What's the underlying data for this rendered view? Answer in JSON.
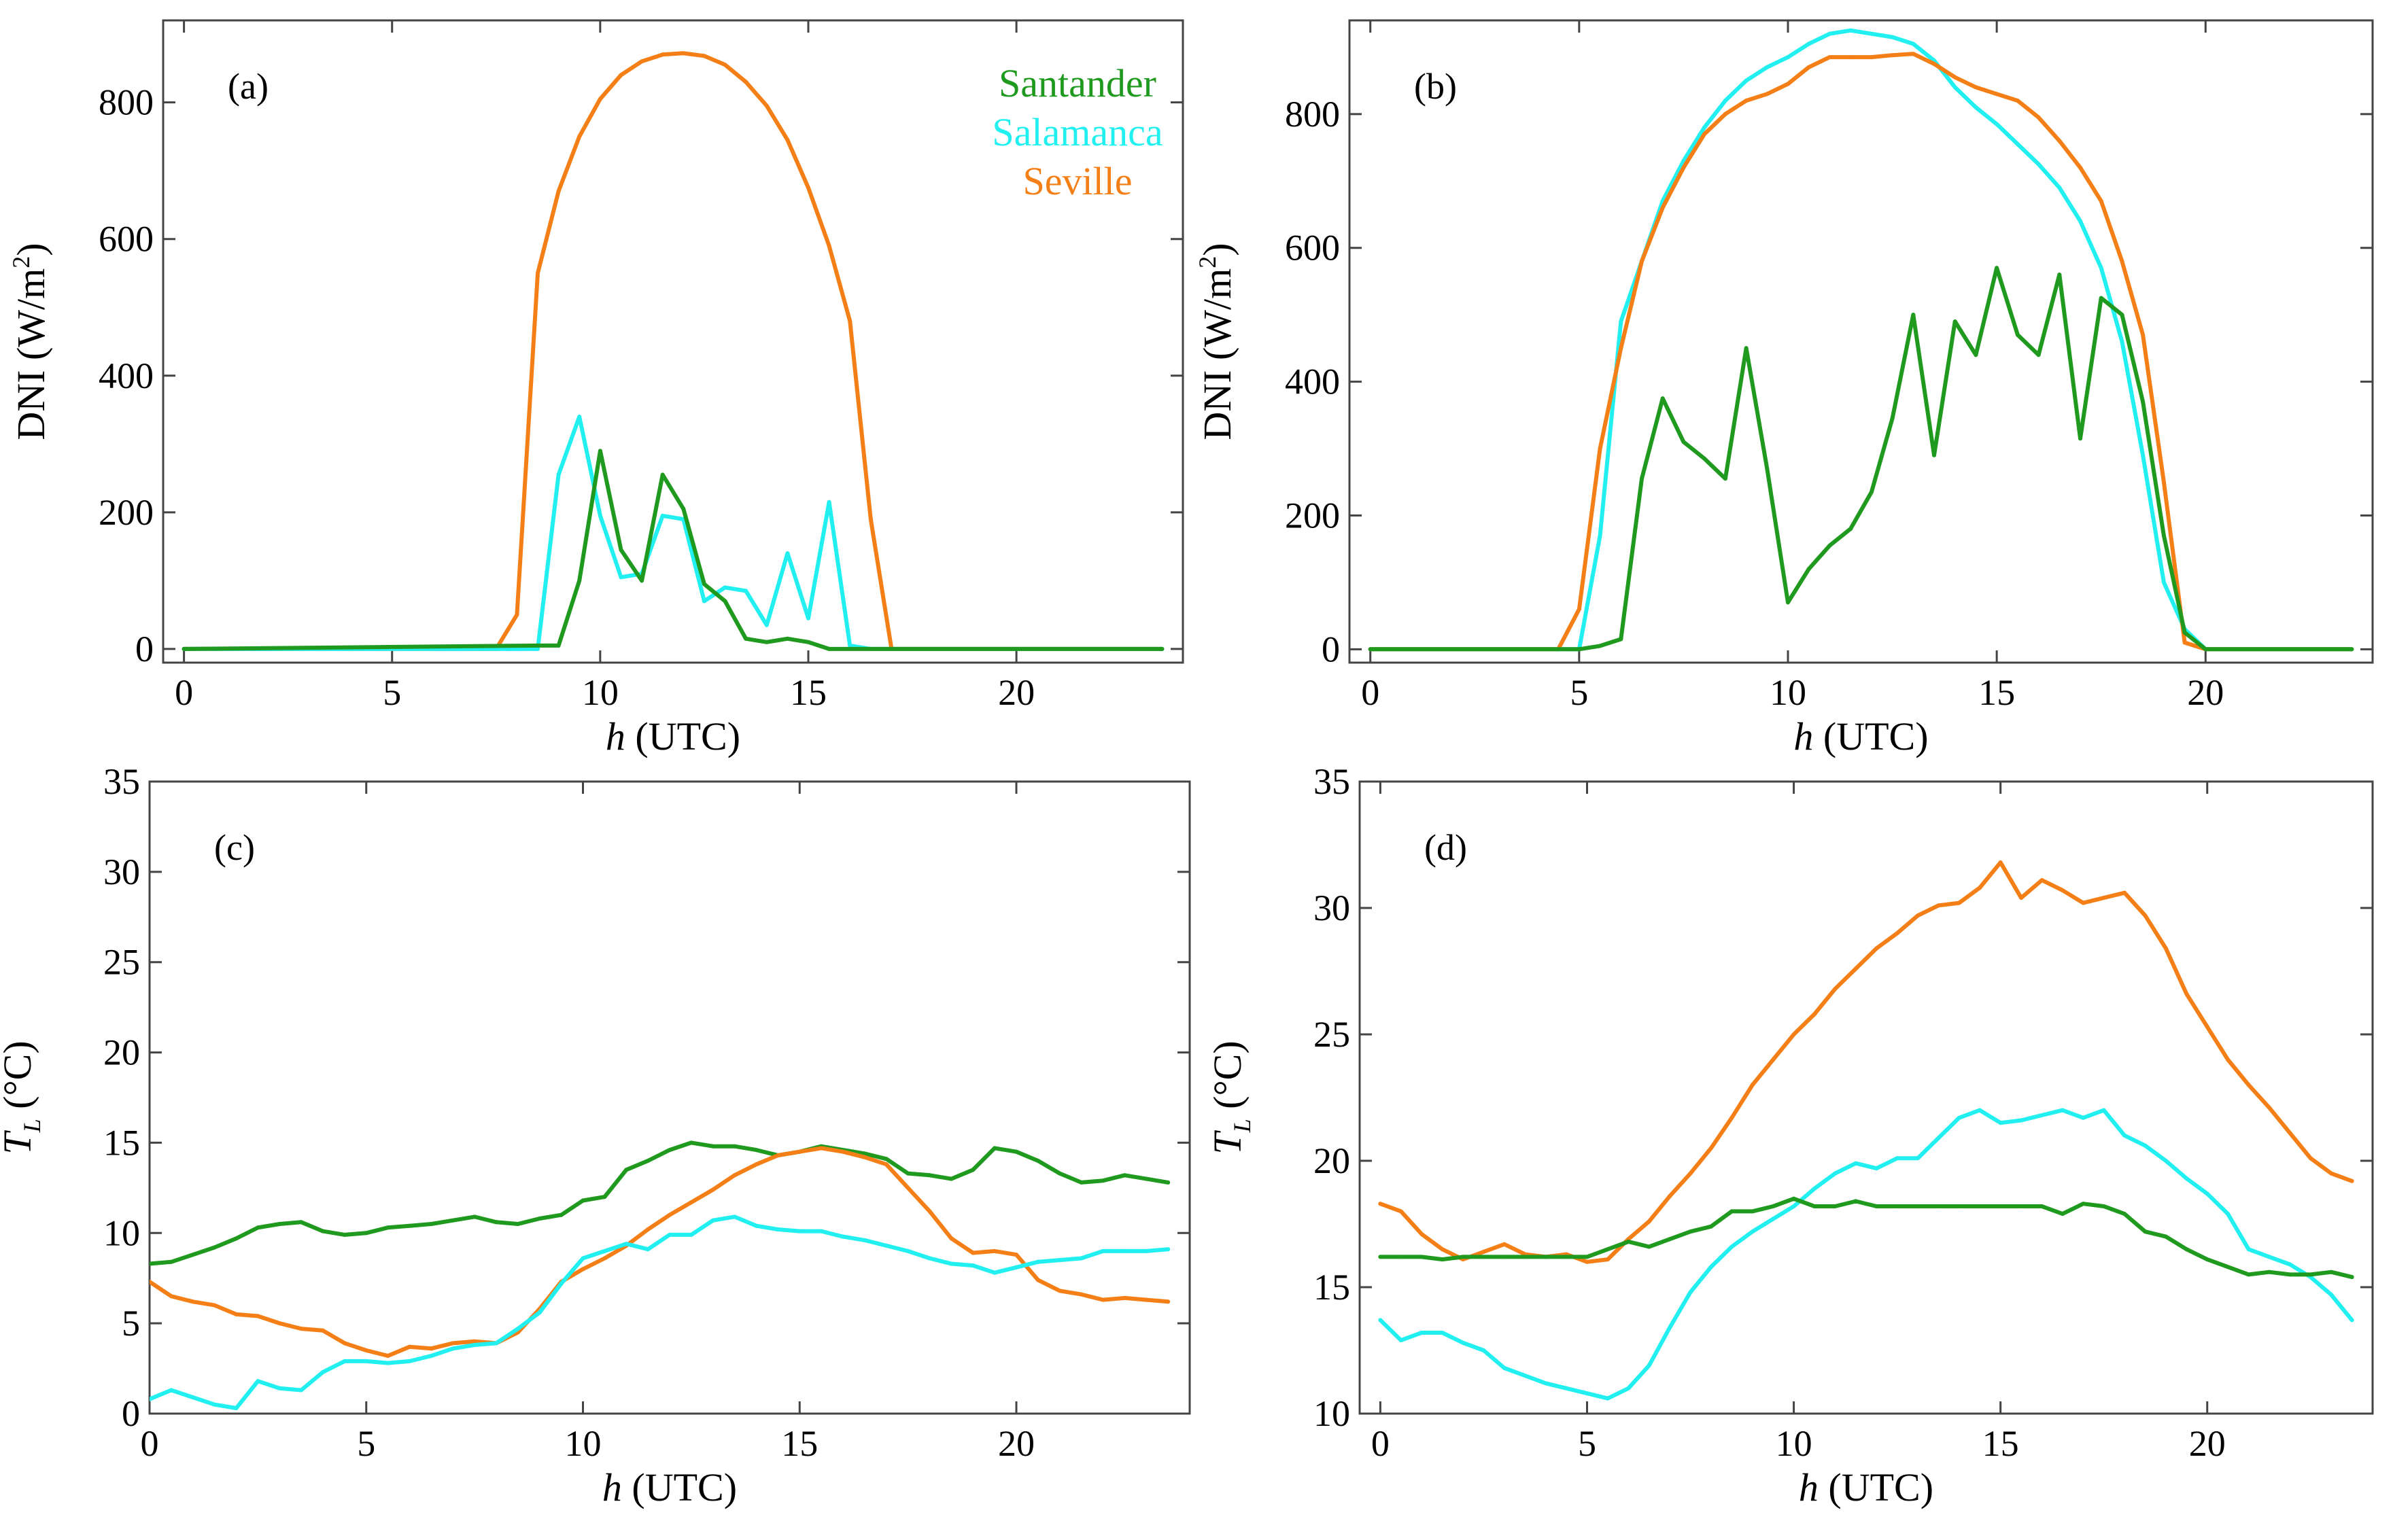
{
  "colors": {
    "Santander": "#1f9a1f",
    "Salamanca": "#22f0f0",
    "Seville": "#f57f17"
  },
  "chart_data": [
    {
      "type": "line",
      "panel_label": "(a)",
      "xlabel": "h (UTC)",
      "ylabel": "DNI (W/m²)",
      "xlim": [
        -0.5,
        24
      ],
      "ylim": [
        -20,
        920
      ],
      "xticks": [
        0,
        5,
        10,
        15,
        20
      ],
      "yticks": [
        0,
        200,
        400,
        600,
        800
      ],
      "grid": false,
      "legend": {
        "position": "top-right",
        "entries": [
          "Santander",
          "Salamanca",
          "Seville"
        ]
      },
      "series": [
        {
          "name": "Seville",
          "x": [
            0,
            7.5,
            8,
            8.5,
            9,
            9.5,
            10,
            10.5,
            11,
            11.5,
            12,
            12.5,
            13,
            13.5,
            14,
            14.5,
            15,
            15.5,
            16,
            16.5,
            17,
            23.5
          ],
          "y": [
            0,
            0,
            50,
            550,
            670,
            750,
            805,
            840,
            860,
            870,
            872,
            868,
            855,
            830,
            795,
            745,
            675,
            590,
            480,
            190,
            0,
            0
          ]
        },
        {
          "name": "Salamanca",
          "x": [
            0,
            8.5,
            9,
            9.5,
            10,
            10.5,
            11,
            11.5,
            12,
            12.5,
            13,
            13.5,
            14,
            14.5,
            15,
            15.5,
            16,
            16.5,
            23.5
          ],
          "y": [
            0,
            0,
            255,
            340,
            195,
            105,
            110,
            195,
            190,
            70,
            90,
            85,
            35,
            140,
            45,
            215,
            5,
            0,
            0
          ]
        },
        {
          "name": "Santander",
          "x": [
            0,
            8.5,
            9,
            9.5,
            10,
            10.5,
            11,
            11.5,
            12,
            12.5,
            13,
            13.5,
            14,
            14.5,
            15,
            15.5,
            23.5
          ],
          "y": [
            0,
            5,
            5,
            100,
            290,
            145,
            100,
            255,
            205,
            95,
            70,
            15,
            10,
            15,
            10,
            0,
            0
          ]
        }
      ]
    },
    {
      "type": "line",
      "panel_label": "(b)",
      "xlabel": "h (UTC)",
      "ylabel": "DNI (W/m²)",
      "xlim": [
        -0.5,
        24
      ],
      "ylim": [
        -20,
        940
      ],
      "xticks": [
        0,
        5,
        10,
        15,
        20
      ],
      "yticks": [
        0,
        200,
        400,
        600,
        800
      ],
      "grid": false,
      "series": [
        {
          "name": "Salamanca",
          "x": [
            0,
            5,
            5.5,
            6,
            6.5,
            7,
            7.5,
            8,
            8.5,
            9,
            9.5,
            10,
            10.5,
            11,
            11.5,
            12,
            12.5,
            13,
            13.5,
            14,
            14.5,
            15,
            15.5,
            16,
            16.5,
            17,
            17.5,
            18,
            18.5,
            19,
            19.5,
            20,
            23.5
          ],
          "y": [
            0,
            0,
            170,
            490,
            580,
            670,
            730,
            780,
            820,
            850,
            870,
            885,
            905,
            920,
            925,
            920,
            915,
            905,
            880,
            840,
            810,
            785,
            755,
            725,
            690,
            640,
            570,
            460,
            290,
            100,
            30,
            0,
            0
          ]
        },
        {
          "name": "Seville",
          "x": [
            0,
            4.5,
            5,
            5.5,
            6,
            6.5,
            7,
            7.5,
            8,
            8.5,
            9,
            9.5,
            10,
            10.5,
            11,
            11.5,
            12,
            12.5,
            13,
            13.5,
            14,
            14.5,
            15,
            15.5,
            16,
            16.5,
            17,
            17.5,
            18,
            18.5,
            19,
            19.5,
            20,
            23.5
          ],
          "y": [
            0,
            0,
            60,
            300,
            450,
            580,
            660,
            720,
            770,
            800,
            820,
            830,
            845,
            870,
            885,
            885,
            885,
            888,
            890,
            875,
            855,
            840,
            830,
            820,
            795,
            760,
            720,
            670,
            580,
            470,
            250,
            10,
            0,
            0
          ]
        },
        {
          "name": "Santander",
          "x": [
            0,
            5,
            5.5,
            6,
            6.5,
            7,
            7.5,
            8,
            8.5,
            9,
            9.5,
            10,
            10.5,
            11,
            11.5,
            12,
            12.5,
            13,
            13.5,
            14,
            14.5,
            15,
            15.5,
            16,
            16.5,
            17,
            17.5,
            18,
            18.5,
            19,
            19.5,
            20,
            23.5
          ],
          "y": [
            0,
            0,
            5,
            15,
            255,
            375,
            310,
            285,
            255,
            450,
            270,
            70,
            120,
            155,
            180,
            235,
            345,
            500,
            290,
            490,
            440,
            570,
            470,
            440,
            560,
            315,
            525,
            500,
            370,
            170,
            25,
            0,
            0
          ]
        }
      ]
    },
    {
      "type": "line",
      "panel_label": "(c)",
      "xlabel": "h (UTC)",
      "ylabel": "T_L (°C)",
      "xlim": [
        0,
        24
      ],
      "ylim": [
        0,
        35
      ],
      "xticks": [
        0,
        5,
        10,
        15,
        20
      ],
      "yticks": [
        0,
        5,
        10,
        15,
        20,
        25,
        30,
        35
      ],
      "grid": false,
      "series": [
        {
          "name": "Santander",
          "x": [
            0,
            0.5,
            1,
            1.5,
            2,
            2.5,
            3,
            3.5,
            4,
            4.5,
            5,
            5.5,
            6,
            6.5,
            7,
            7.5,
            8,
            8.5,
            9,
            9.5,
            10,
            10.5,
            11,
            11.5,
            12,
            12.5,
            13,
            13.5,
            14,
            14.5,
            15,
            15.5,
            16,
            16.5,
            17,
            17.5,
            18,
            18.5,
            19,
            19.5,
            20,
            20.5,
            21,
            21.5,
            22,
            22.5,
            23,
            23.5
          ],
          "y": [
            8.3,
            8.4,
            8.8,
            9.2,
            9.7,
            10.3,
            10.5,
            10.6,
            10.1,
            9.9,
            10.0,
            10.3,
            10.4,
            10.5,
            10.7,
            10.9,
            10.6,
            10.5,
            10.8,
            11.0,
            11.8,
            12.0,
            13.5,
            14.0,
            14.6,
            15.0,
            14.8,
            14.8,
            14.6,
            14.3,
            14.5,
            14.8,
            14.6,
            14.4,
            14.1,
            13.3,
            13.2,
            13.0,
            13.5,
            14.7,
            14.5,
            14.0,
            13.3,
            12.8,
            12.9,
            13.2,
            13.0,
            12.8
          ]
        },
        {
          "name": "Seville",
          "x": [
            0,
            0.5,
            1,
            1.5,
            2,
            2.5,
            3,
            3.5,
            4,
            4.5,
            5,
            5.5,
            6,
            6.5,
            7,
            7.5,
            8,
            8.5,
            9,
            9.5,
            10,
            10.5,
            11,
            11.5,
            12,
            12.5,
            13,
            13.5,
            14,
            14.5,
            15,
            15.5,
            16,
            16.5,
            17,
            17.5,
            18,
            18.5,
            19,
            19.5,
            20,
            20.5,
            21,
            21.5,
            22,
            22.5,
            23,
            23.5
          ],
          "y": [
            7.3,
            6.5,
            6.2,
            6.0,
            5.5,
            5.4,
            5.0,
            4.7,
            4.6,
            3.9,
            3.5,
            3.2,
            3.7,
            3.6,
            3.9,
            4.0,
            3.9,
            4.5,
            5.8,
            7.3,
            8.0,
            8.6,
            9.3,
            10.2,
            11.0,
            11.7,
            12.4,
            13.2,
            13.8,
            14.3,
            14.5,
            14.7,
            14.5,
            14.2,
            13.8,
            12.5,
            11.2,
            9.7,
            8.9,
            9.0,
            8.8,
            7.4,
            6.8,
            6.6,
            6.3,
            6.4,
            6.3,
            6.2
          ]
        },
        {
          "name": "Salamanca",
          "x": [
            0,
            0.5,
            1,
            1.5,
            2,
            2.5,
            3,
            3.5,
            4,
            4.5,
            5,
            5.5,
            6,
            6.5,
            7,
            7.5,
            8,
            8.5,
            9,
            9.5,
            10,
            10.5,
            11,
            11.5,
            12,
            12.5,
            13,
            13.5,
            14,
            14.5,
            15,
            15.5,
            16,
            16.5,
            17,
            17.5,
            18,
            18.5,
            19,
            19.5,
            20,
            20.5,
            21,
            21.5,
            22,
            22.5,
            23,
            23.5
          ],
          "y": [
            0.8,
            1.3,
            0.9,
            0.5,
            0.3,
            1.8,
            1.4,
            1.3,
            2.3,
            2.9,
            2.9,
            2.8,
            2.9,
            3.2,
            3.6,
            3.8,
            3.9,
            4.7,
            5.6,
            7.2,
            8.6,
            9.0,
            9.4,
            9.1,
            9.9,
            9.9,
            10.7,
            10.9,
            10.4,
            10.2,
            10.1,
            10.1,
            9.8,
            9.6,
            9.3,
            9.0,
            8.6,
            8.3,
            8.2,
            7.8,
            8.1,
            8.4,
            8.5,
            8.6,
            9.0,
            9.0,
            9.0,
            9.1
          ]
        }
      ]
    },
    {
      "type": "line",
      "panel_label": "(d)",
      "xlabel": "h (UTC)",
      "ylabel": "T_L (°C)",
      "xlim": [
        -0.5,
        24
      ],
      "ylim": [
        10,
        35
      ],
      "xticks": [
        0,
        5,
        10,
        15,
        20
      ],
      "yticks": [
        10,
        15,
        20,
        25,
        30,
        35
      ],
      "grid": false,
      "series": [
        {
          "name": "Seville",
          "x": [
            0,
            0.5,
            1,
            1.5,
            2,
            2.5,
            3,
            3.5,
            4,
            4.5,
            5,
            5.5,
            6,
            6.5,
            7,
            7.5,
            8,
            8.5,
            9,
            9.5,
            10,
            10.5,
            11,
            11.5,
            12,
            12.5,
            13,
            13.5,
            14,
            14.5,
            15,
            15.5,
            16,
            16.5,
            17,
            17.5,
            18,
            18.5,
            19,
            19.5,
            20,
            20.5,
            21,
            21.5,
            22,
            22.5,
            23,
            23.5
          ],
          "y": [
            18.3,
            18.0,
            17.1,
            16.5,
            16.1,
            16.4,
            16.7,
            16.3,
            16.2,
            16.3,
            16.0,
            16.1,
            16.9,
            17.6,
            18.6,
            19.5,
            20.5,
            21.7,
            23.0,
            24.0,
            25.0,
            25.8,
            26.8,
            27.6,
            28.4,
            29.0,
            29.7,
            30.1,
            30.2,
            30.8,
            31.8,
            30.4,
            31.1,
            30.7,
            30.2,
            30.4,
            30.6,
            29.7,
            28.4,
            26.6,
            25.3,
            24.0,
            23.0,
            22.1,
            21.1,
            20.1,
            19.5,
            19.2
          ]
        },
        {
          "name": "Salamanca",
          "x": [
            0,
            0.5,
            1,
            1.5,
            2,
            2.5,
            3,
            3.5,
            4,
            4.5,
            5,
            5.5,
            6,
            6.5,
            7,
            7.5,
            8,
            8.5,
            9,
            9.5,
            10,
            10.5,
            11,
            11.5,
            12,
            12.5,
            13,
            13.5,
            14,
            14.5,
            15,
            15.5,
            16,
            16.5,
            17,
            17.5,
            18,
            18.5,
            19,
            19.5,
            20,
            20.5,
            21,
            21.5,
            22,
            22.5,
            23,
            23.5
          ],
          "y": [
            13.7,
            12.9,
            13.2,
            13.2,
            12.8,
            12.5,
            11.8,
            11.5,
            11.2,
            11.0,
            10.8,
            10.6,
            11.0,
            11.9,
            13.4,
            14.8,
            15.8,
            16.6,
            17.2,
            17.7,
            18.2,
            18.9,
            19.5,
            19.9,
            19.7,
            20.1,
            20.1,
            20.9,
            21.7,
            22.0,
            21.5,
            21.6,
            21.8,
            22.0,
            21.7,
            22.0,
            21.0,
            20.6,
            20.0,
            19.3,
            18.7,
            17.9,
            16.5,
            16.2,
            15.9,
            15.4,
            14.7,
            13.7
          ]
        },
        {
          "name": "Santander",
          "x": [
            0,
            0.5,
            1,
            1.5,
            2,
            2.5,
            3,
            3.5,
            4,
            4.5,
            5,
            5.5,
            6,
            6.5,
            7,
            7.5,
            8,
            8.5,
            9,
            9.5,
            10,
            10.5,
            11,
            11.5,
            12,
            12.5,
            13,
            13.5,
            14,
            14.5,
            15,
            15.5,
            16,
            16.5,
            17,
            17.5,
            18,
            18.5,
            19,
            19.5,
            20,
            20.5,
            21,
            21.5,
            22,
            22.5,
            23,
            23.5
          ],
          "y": [
            16.2,
            16.2,
            16.2,
            16.1,
            16.2,
            16.2,
            16.2,
            16.2,
            16.2,
            16.2,
            16.2,
            16.5,
            16.8,
            16.6,
            16.9,
            17.2,
            17.4,
            18.0,
            18.0,
            18.2,
            18.5,
            18.2,
            18.2,
            18.4,
            18.2,
            18.2,
            18.2,
            18.2,
            18.2,
            18.2,
            18.2,
            18.2,
            18.2,
            17.9,
            18.3,
            18.2,
            17.9,
            17.2,
            17.0,
            16.5,
            16.1,
            15.8,
            15.5,
            15.6,
            15.5,
            15.5,
            15.6,
            15.4
          ]
        }
      ]
    }
  ]
}
